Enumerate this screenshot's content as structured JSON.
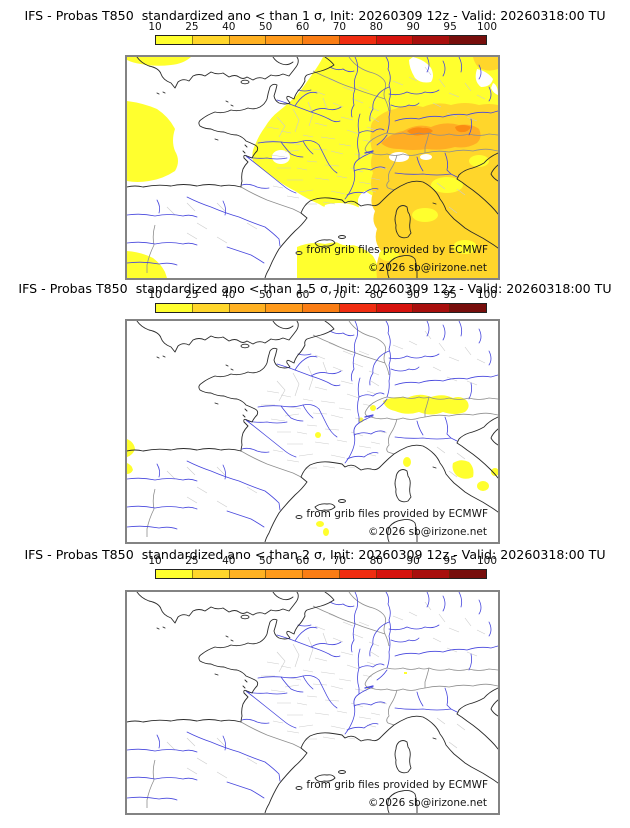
{
  "panels": [
    {
      "title": "IFS - Probas T850  standardized ano < than 1 σ, Init: 20260309 12z - Valid: 20260318:00 TU",
      "credit1": "from grib files provided by ECMWF",
      "credit2": "©2026 sb@irizone.net"
    },
    {
      "title": "IFS - Probas T850  standardized ano < than 1.5 σ, Init: 20260309 12z - Valid: 20260318:00 TU",
      "credit1": "from grib files provided by ECMWF",
      "credit2": "©2026 sb@irizone.net"
    },
    {
      "title": "IFS - Probas T850  standardized ano < than 2 σ, Init: 20260309 12z - Valid: 20260318:00 TU",
      "credit1": "from grib files provided by ECMWF",
      "credit2": "©2026 sb@irizone.net"
    }
  ],
  "colorbar": {
    "ticks": [
      "10",
      "25",
      "40",
      "50",
      "60",
      "70",
      "80",
      "90",
      "95",
      "100"
    ],
    "colors": [
      "#ffff2e",
      "#ffd62b",
      "#ffb122",
      "#ff9a1b",
      "#fa7d14",
      "#f02d11",
      "#d6130e",
      "#a80f0d",
      "#770e0c"
    ]
  },
  "map_colors": {
    "prob_10_25": "#ffff2e",
    "prob_25_40": "#ffd62b",
    "prob_40_50": "#ffad24",
    "prob_50_60": "#fb8b12",
    "rivers": "#4646dd",
    "coastline": "#2b2b2b",
    "country_borders": "#8f8f8f",
    "region_borders": "#cccccc",
    "frame": "#838383"
  }
}
